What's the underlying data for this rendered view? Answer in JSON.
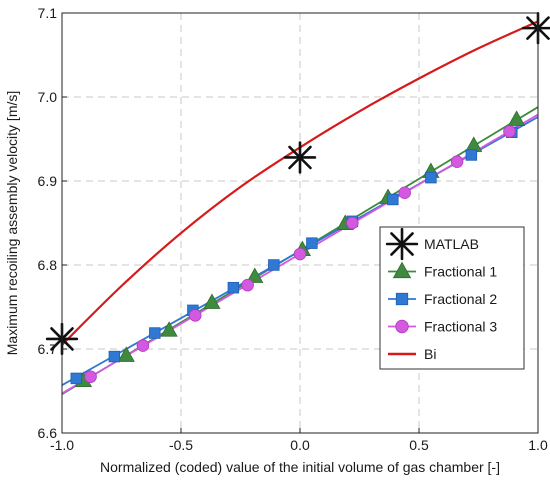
{
  "chart_data": {
    "type": "line",
    "title": "",
    "xlabel": "Normalized (coded) value of the initial volume of gas chamber [-]",
    "ylabel": "Maximum recoiling assembly velocity [m/s]",
    "xlim": [
      -1.0,
      1.0
    ],
    "ylim": [
      6.6,
      7.1
    ],
    "xticks": [
      -1.0,
      -0.5,
      0.0,
      0.5,
      1.0
    ],
    "xtick_labels": [
      "-1.0",
      "-0.5",
      "0.0",
      "0.5",
      "1.0"
    ],
    "yticks": [
      6.6,
      6.7,
      6.8,
      6.9,
      7.0,
      7.1
    ],
    "ytick_labels": [
      "6.6",
      "6.7",
      "6.8",
      "6.9",
      "7.0",
      "7.1"
    ],
    "grid": true,
    "legend_position": "right-middle",
    "series": [
      {
        "name": "MATLAB",
        "style": "markers",
        "marker": "asterisk",
        "color": "#111111",
        "x": [
          -1.0,
          0.0,
          1.0
        ],
        "y": [
          6.712,
          6.928,
          7.082
        ]
      },
      {
        "name": "Fractional 1",
        "style": "line+markers",
        "marker": "triangle",
        "color": "#3f8a3f",
        "x": [
          -0.91,
          -0.73,
          -0.55,
          -0.37,
          -0.19,
          0.01,
          0.19,
          0.37,
          0.55,
          0.73,
          0.91
        ],
        "y": [
          6.662,
          6.692,
          6.722,
          6.755,
          6.786,
          6.818,
          6.849,
          6.88,
          6.911,
          6.942,
          6.973
        ]
      },
      {
        "name": "Fractional 2",
        "style": "line+markers",
        "marker": "square",
        "color": "#2f78d4",
        "x": [
          -0.94,
          -0.78,
          -0.61,
          -0.45,
          -0.28,
          -0.11,
          0.05,
          0.22,
          0.39,
          0.55,
          0.72,
          0.89
        ],
        "y": [
          6.665,
          6.691,
          6.719,
          6.746,
          6.773,
          6.8,
          6.826,
          6.852,
          6.878,
          6.904,
          6.931,
          6.958
        ]
      },
      {
        "name": "Fractional 3",
        "style": "line+markers",
        "marker": "circle",
        "color": "#d259e0",
        "x": [
          -0.88,
          -0.66,
          -0.44,
          -0.22,
          0.0,
          0.22,
          0.44,
          0.66,
          0.88
        ],
        "y": [
          6.667,
          6.704,
          6.74,
          6.776,
          6.813,
          6.85,
          6.886,
          6.923,
          6.959
        ]
      },
      {
        "name": "Bi",
        "style": "line",
        "color": "#d61a1a",
        "x": [
          -1.0,
          -0.75,
          -0.5,
          -0.25,
          0.0,
          0.25,
          0.5,
          0.75,
          1.0
        ],
        "y": [
          6.705,
          6.775,
          6.838,
          6.893,
          6.94,
          6.983,
          7.022,
          7.058,
          7.09
        ]
      }
    ]
  }
}
